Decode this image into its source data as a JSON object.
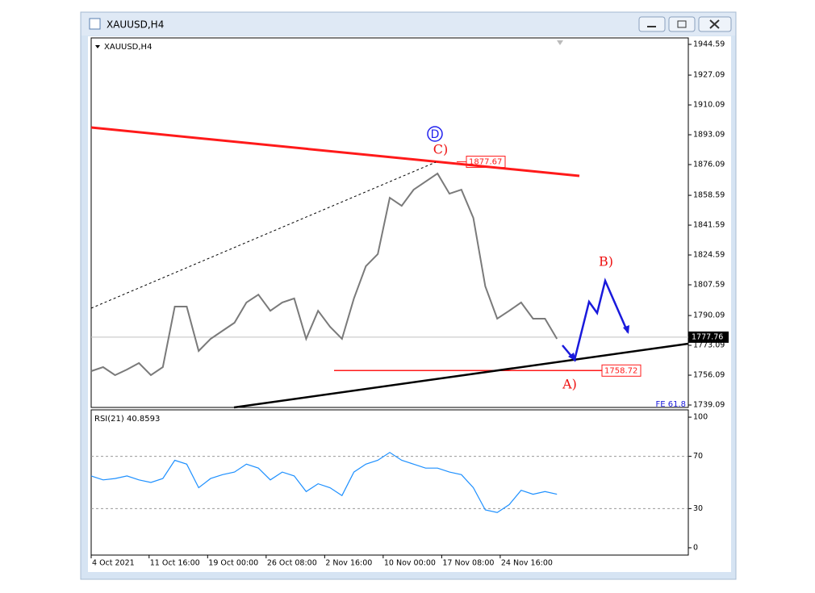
{
  "window": {
    "title": "XAUUSD,H4"
  },
  "chart_data": [
    {
      "type": "line",
      "title": "XAUUSD,H4",
      "color": "#7a7a7a",
      "x": [
        0,
        2,
        4,
        6,
        8,
        10,
        12,
        14,
        16,
        18,
        20,
        22,
        24,
        26,
        28,
        30,
        32,
        34,
        36,
        38,
        40,
        42,
        44,
        46,
        48,
        50,
        52,
        54,
        56,
        58,
        60,
        62,
        64,
        66,
        68,
        70,
        72,
        74,
        76,
        78
      ],
      "values": [
        1758.4,
        1760.7,
        1756.1,
        1759.3,
        1763.0,
        1756.1,
        1760.7,
        1795.2,
        1795.2,
        1769.9,
        1776.8,
        1781.4,
        1786.0,
        1797.5,
        1802.0,
        1792.8,
        1797.5,
        1799.8,
        1776.8,
        1792.8,
        1783.7,
        1776.8,
        1799.8,
        1818.2,
        1825.1,
        1857.2,
        1852.6,
        1861.8,
        1866.4,
        1871.0,
        1859.5,
        1861.8,
        1845.7,
        1806.7,
        1788.3,
        1792.8,
        1797.5,
        1788.3,
        1788.3,
        1776.8
      ],
      "xlim": [
        0,
        100
      ],
      "ylim": [
        1737.71,
        1948.27
      ],
      "yticks": [
        1944.59,
        1927.09,
        1910.09,
        1893.09,
        1876.09,
        1858.59,
        1841.59,
        1824.59,
        1807.59,
        1790.09,
        1773.09,
        1756.09,
        1739.09
      ],
      "level_labels": [
        1877.67,
        1758.72
      ],
      "last_price": 1777.76,
      "wave_labels": [
        "D",
        "C)",
        "B)",
        "A)"
      ],
      "annotation": "FE 61.8"
    },
    {
      "type": "line",
      "title": "RSI(21) 40.8593",
      "color": "#1e90ff",
      "x": [
        0,
        2,
        4,
        6,
        8,
        10,
        12,
        14,
        16,
        18,
        20,
        22,
        24,
        26,
        28,
        30,
        32,
        34,
        36,
        38,
        40,
        42,
        44,
        46,
        48,
        50,
        52,
        54,
        56,
        58,
        60,
        62,
        64,
        66,
        68,
        70,
        72,
        74,
        76,
        78
      ],
      "values": [
        55,
        52,
        53,
        55,
        52,
        50,
        53,
        67,
        64,
        46,
        53,
        56,
        58,
        64,
        61,
        52,
        58,
        55,
        43,
        49,
        46,
        40,
        58,
        64,
        67,
        73,
        67,
        64,
        61,
        61,
        58,
        56,
        46,
        29,
        27,
        33,
        44,
        41,
        43,
        41
      ],
      "xlim": [
        0,
        100
      ],
      "ylim": [
        -5.6,
        105.6
      ],
      "yticks": [
        100,
        70,
        30,
        0
      ],
      "levels": [
        70,
        30
      ],
      "xticks": [
        {
          "value": 0,
          "label": "4 Oct 2021"
        },
        {
          "value": 9.7,
          "label": "11 Oct 16:00"
        },
        {
          "value": 19.5,
          "label": "19 Oct 00:00"
        },
        {
          "value": 29.3,
          "label": "26 Oct 08:00"
        },
        {
          "value": 39.1,
          "label": "2 Nov 16:00"
        },
        {
          "value": 48.9,
          "label": "10 Nov 00:00"
        },
        {
          "value": 58.7,
          "label": "17 Nov 08:00"
        },
        {
          "value": 68.5,
          "label": "24 Nov 16:00"
        }
      ]
    }
  ]
}
